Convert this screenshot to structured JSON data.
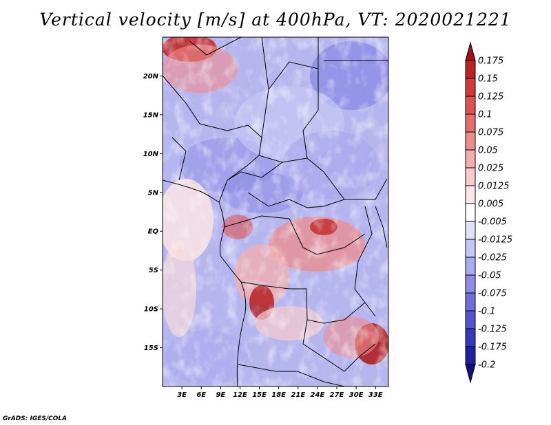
{
  "title": "Vertical velocity [m/s] at 400hPa, VT: 2020021221",
  "credit": "GrADS: IGES/COLA",
  "map": {
    "lat_labels": [
      "20N",
      "15N",
      "10N",
      "5N",
      "EQ",
      "5S",
      "10S",
      "15S"
    ],
    "lat_values": [
      20,
      15,
      10,
      5,
      0,
      -5,
      -10,
      -15
    ],
    "lon_labels": [
      "3E",
      "6E",
      "9E",
      "12E",
      "15E",
      "18E",
      "21E",
      "24E",
      "27E",
      "30E",
      "33E"
    ],
    "lon_values": [
      3,
      6,
      9,
      12,
      15,
      18,
      21,
      24,
      27,
      30,
      33
    ],
    "lon_range": [
      0,
      35
    ],
    "lat_range": [
      -20,
      25
    ]
  },
  "colorbar": {
    "labels": [
      "0.175",
      "0.15",
      "0.125",
      "0.1",
      "0.075",
      "0.05",
      "0.025",
      "0.0125",
      "0.005",
      "-0.005",
      "-0.0125",
      "-0.025",
      "-0.05",
      "-0.075",
      "-0.1",
      "-0.125",
      "-0.175",
      "-0.2"
    ],
    "colors": [
      "#a01010",
      "#bd2222",
      "#d03a3a",
      "#dd5252",
      "#e66d6d",
      "#ee8c8c",
      "#f4aeae",
      "#f8cccc",
      "#fce8e8",
      "#ffffff",
      "#e2e2fa",
      "#c6c6f4",
      "#aaaaee",
      "#8c8ce6",
      "#6e6edc",
      "#5252cf",
      "#3838bf",
      "#2020a4",
      "#10107a"
    ]
  }
}
